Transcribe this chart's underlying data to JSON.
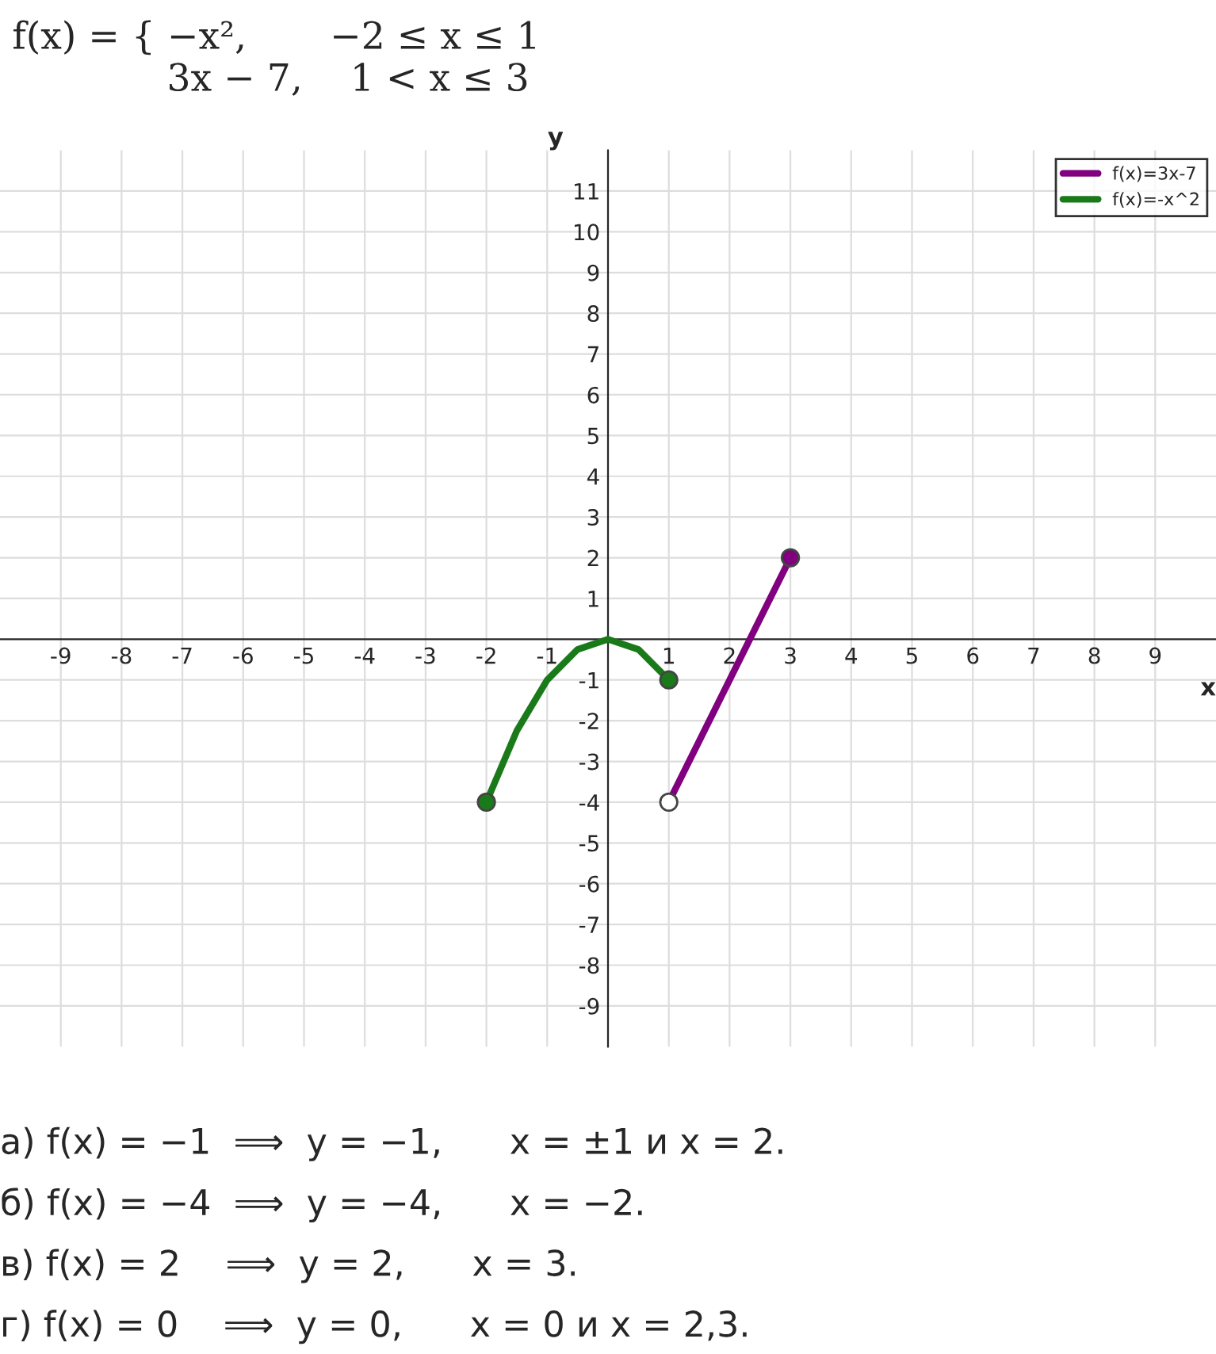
{
  "chart_data": {
    "type": "line",
    "title": "f(x) = { −x²,       −2 ≤ x ≤ 1\n             3x − 7,    1 < x ≤ 3",
    "xlabel": "x",
    "ylabel": "y",
    "xlim": [
      -10,
      10
    ],
    "ylim": [
      -10,
      12
    ],
    "xticks": [
      -9,
      -8,
      -7,
      -6,
      -5,
      -4,
      -3,
      -2,
      -1,
      1,
      2,
      3,
      4,
      5,
      6,
      7,
      8,
      9
    ],
    "yticks": [
      -9,
      -8,
      -7,
      -6,
      -5,
      -4,
      -3,
      -2,
      -1,
      1,
      2,
      3,
      4,
      5,
      6,
      7,
      8,
      9,
      10,
      11
    ],
    "grid": true,
    "legend": "top right",
    "line_style": "solid",
    "series": [
      {
        "name": "f(x)=3x-7",
        "color": "#800080",
        "x": [
          1,
          3
        ],
        "values": [
          -4,
          2
        ]
      },
      {
        "name": "f(x)=-x^2",
        "color": "#1a7a1a",
        "x": [
          -2,
          -1.5,
          -1,
          -0.5,
          0,
          0.5,
          1
        ],
        "values": [
          -4,
          -2.25,
          -1,
          -0.25,
          0,
          -0.25,
          -1
        ]
      },
      {
        "type": "scatter",
        "color": "#1a7a1a",
        "x": [
          -2,
          1
        ],
        "values": [
          -4,
          -1
        ]
      },
      {
        "type": "scatter",
        "color": "#800080",
        "x": [
          3
        ],
        "values": [
          2
        ]
      },
      {
        "type": "scatter",
        "color": "#ffffff",
        "x": [
          1
        ],
        "values": [
          -4
        ]
      }
    ],
    "annotations": [
      "а) f(x) = −1  ⟹  y = −1,      x = ±1 и x = 2.",
      "б) f(x) = −4  ⟹  y = −4,      x = −2.",
      "в) f(x) = 2    ⟹  y = 2,      x = 3.",
      "г) f(x) = 0    ⟹  y = 0,      x = 0 и x = 2,3."
    ]
  }
}
